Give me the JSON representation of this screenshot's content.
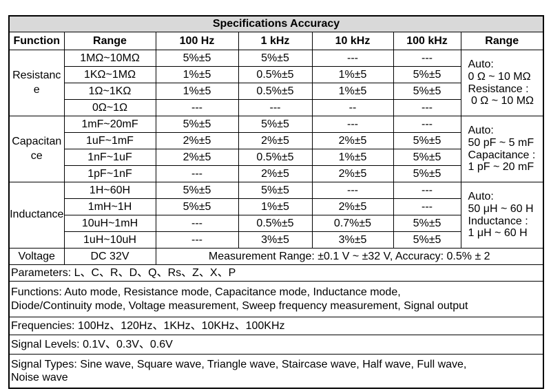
{
  "title": "Specifications Accuracy",
  "headers": [
    "Function",
    "Range",
    "100 Hz",
    "1 kHz",
    "10 kHz",
    "100 kHz",
    "Range"
  ],
  "groups": [
    {
      "function": "Resistance",
      "rows": [
        [
          "1MΩ~10MΩ",
          "5%±5",
          "5%±5",
          "---",
          "---"
        ],
        [
          "1KΩ~1MΩ",
          "1%±5",
          "0.5%±5",
          "1%±5",
          "5%±5"
        ],
        [
          "1Ω~1KΩ",
          "1%±5",
          "0.5%±5",
          "1%±5",
          "5%±5"
        ],
        [
          "0Ω~1Ω",
          "---",
          "---",
          "--",
          "---"
        ]
      ],
      "range_notes": [
        "Auto:",
        "0 Ω ~ 10 MΩ",
        "Resistance :",
        " 0 Ω ~ 10 MΩ"
      ]
    },
    {
      "function": "Capacitance",
      "rows": [
        [
          "1mF~20mF",
          "5%±5",
          "5%±5",
          "---",
          "---"
        ],
        [
          "1uF~1mF",
          "2%±5",
          "2%±5",
          "2%±5",
          "5%±5"
        ],
        [
          "1nF~1uF",
          "2%±5",
          "0.5%±5",
          "1%±5",
          "5%±5"
        ],
        [
          "1pF~1nF",
          "---",
          "2%±5",
          "2%±5",
          "5%±5"
        ]
      ],
      "range_notes": [
        "Auto:",
        "50 pF ~ 5 mF",
        "Capacitance :",
        "1 pF ~ 20 mF"
      ]
    },
    {
      "function": "Inductance",
      "rows": [
        [
          "1H~60H",
          "5%±5",
          "5%±5",
          "---",
          "---"
        ],
        [
          "1mH~1H",
          "5%±5",
          "1%±5",
          "2%±5",
          "---"
        ],
        [
          "10uH~1mH",
          "---",
          "0.5%±5",
          "0.7%±5",
          "5%±5"
        ],
        [
          "1uH~10uH",
          "---",
          "3%±5",
          "3%±5",
          "5%±5"
        ]
      ],
      "range_notes": [
        "Auto:",
        "50 μH ~ 60 H",
        "Inductance :",
        "1 μH ~ 60 H"
      ]
    }
  ],
  "voltage": {
    "function": "Voltage",
    "range": "DC 32V",
    "spec": "Measurement Range: ±0.1 V ~ ±32 V, Accuracy: 0.5% ± 2"
  },
  "notes": [
    [
      "Parameters:  L、C、R、D、Q、Rs、Z、X、P"
    ],
    [
      "Functions:  Auto mode, Resistance mode, Capacitance mode, Inductance mode,",
      "Diode/Continuity mode, Voltage measurement, Sweep frequency measurement, Signal output"
    ],
    [
      "Frequencies:  100Hz、120Hz、1KHz、10KHz、100KHz"
    ],
    [
      "Signal Levels:  0.1V、0.3V、0.6V"
    ],
    [
      "Signal Types:  Sine wave, Square wave, Triangle wave, Staircase wave, Half wave, Full wave,",
      "Noise wave"
    ]
  ]
}
